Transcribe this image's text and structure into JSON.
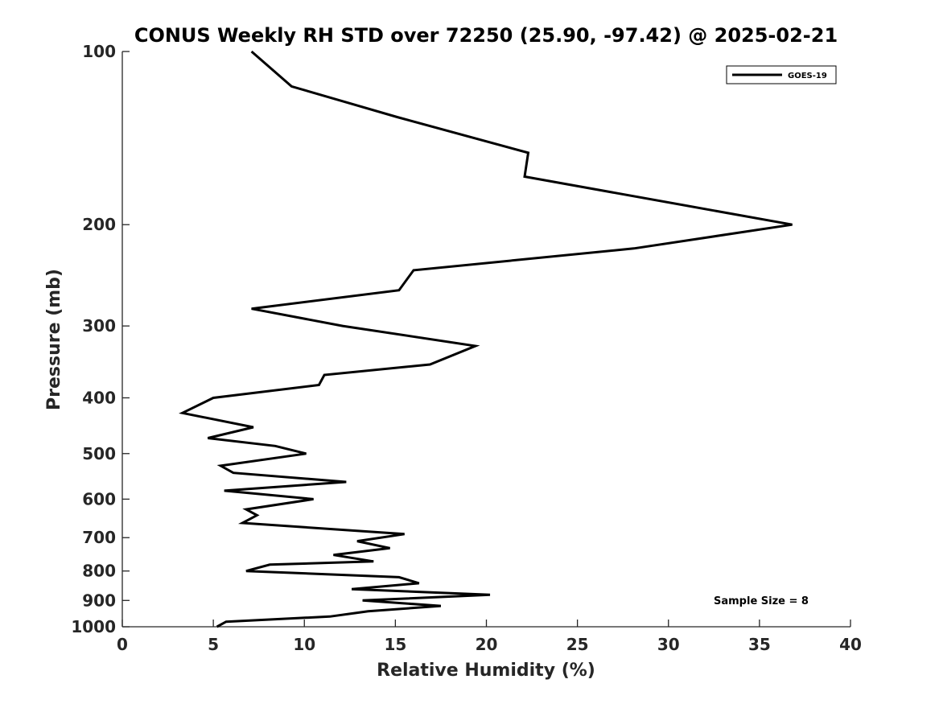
{
  "chart_data": {
    "type": "line",
    "title": "CONUS Weekly RH STD over 72250 (25.90, -97.42) @ 2025-02-21",
    "xlabel": "Relative Humidity (%)",
    "ylabel": "Pressure (mb)",
    "xlim": [
      0,
      40
    ],
    "ylim": [
      1000,
      100
    ],
    "yscale": "log",
    "y_inverted": true,
    "x_ticks": [
      0,
      5,
      10,
      15,
      20,
      25,
      30,
      35,
      40
    ],
    "x_tick_labels": [
      "0",
      "5",
      "10",
      "15",
      "20",
      "25",
      "30",
      "35",
      "40"
    ],
    "y_ticks": [
      100,
      200,
      300,
      400,
      500,
      600,
      700,
      800,
      900,
      1000
    ],
    "y_tick_labels": [
      "100",
      "200",
      "300",
      "400",
      "500",
      "600",
      "700",
      "800",
      "900",
      "1000"
    ],
    "grid": false,
    "legend_position": "top-right",
    "annotation": "Sample Size = 8",
    "series": [
      {
        "name": "GOES-19",
        "color": "#000000",
        "points": [
          [
            7.1,
            100
          ],
          [
            9.3,
            115
          ],
          [
            15.1,
            130
          ],
          [
            22.3,
            150
          ],
          [
            22.1,
            165
          ],
          [
            36.8,
            200
          ],
          [
            28.1,
            220
          ],
          [
            16.0,
            240
          ],
          [
            15.2,
            260
          ],
          [
            7.1,
            280
          ],
          [
            12.1,
            300
          ],
          [
            19.4,
            325
          ],
          [
            16.9,
            350
          ],
          [
            11.1,
            365
          ],
          [
            10.8,
            380
          ],
          [
            5.0,
            400
          ],
          [
            3.3,
            425
          ],
          [
            7.2,
            450
          ],
          [
            4.7,
            470
          ],
          [
            8.4,
            485
          ],
          [
            10.1,
            500
          ],
          [
            5.4,
            525
          ],
          [
            6.1,
            540
          ],
          [
            12.3,
            560
          ],
          [
            5.6,
            580
          ],
          [
            10.5,
            600
          ],
          [
            6.8,
            625
          ],
          [
            7.4,
            640
          ],
          [
            6.6,
            660
          ],
          [
            15.5,
            690
          ],
          [
            12.9,
            710
          ],
          [
            14.7,
            730
          ],
          [
            11.6,
            750
          ],
          [
            13.8,
            770
          ],
          [
            8.1,
            780
          ],
          [
            6.8,
            800
          ],
          [
            15.2,
            820
          ],
          [
            16.3,
            840
          ],
          [
            12.6,
            860
          ],
          [
            20.2,
            880
          ],
          [
            13.2,
            900
          ],
          [
            17.5,
            920
          ],
          [
            13.5,
            940
          ],
          [
            11.4,
            960
          ],
          [
            5.7,
            980
          ],
          [
            5.2,
            1000
          ]
        ]
      }
    ]
  }
}
